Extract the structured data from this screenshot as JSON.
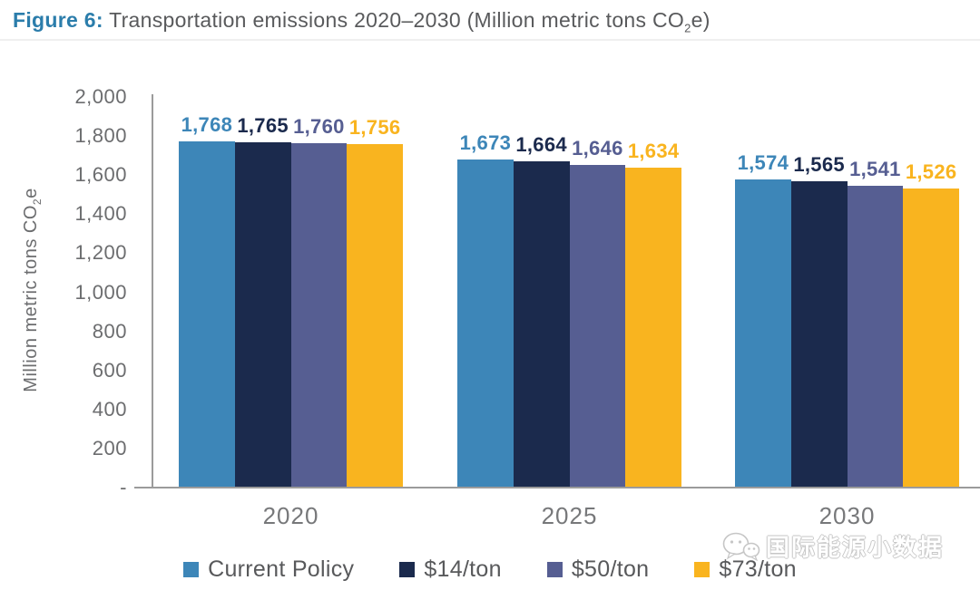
{
  "title": {
    "label": "Figure 6:",
    "body": " Transportation emissions 2020–2030 (Million metric tons CO",
    "sub": "2",
    "tail": "e)"
  },
  "ylabel_parts": {
    "body": "Million metric tons CO",
    "sub": "2",
    "tail": "e"
  },
  "colors": {
    "accent_title_blue": "#2b7dab",
    "title_gray": "#595a5c",
    "axis_gray": "#9b9b9b",
    "tick_text_gray": "#6c6d6f"
  },
  "chart_data": {
    "type": "bar",
    "title": "Figure 6: Transportation emissions 2020-2030 (Million metric tons CO2e)",
    "categories": [
      "2020",
      "2025",
      "2030"
    ],
    "series": [
      {
        "name": "Current Policy",
        "color": "#3d86b8",
        "values": [
          1768,
          1673,
          1574
        ],
        "labels": [
          "1,768",
          "1,673",
          "1,574"
        ]
      },
      {
        "name": "$14/ton",
        "color": "#1b2a4d",
        "values": [
          1765,
          1664,
          1565
        ],
        "labels": [
          "1,765",
          "1,664",
          "1,565"
        ]
      },
      {
        "name": "$50/ton",
        "color": "#565e92",
        "values": [
          1760,
          1646,
          1541
        ],
        "labels": [
          "1,760",
          "1,646",
          "1,541"
        ]
      },
      {
        "name": "$73/ton",
        "color": "#f9b41f",
        "values": [
          1756,
          1634,
          1526
        ],
        "labels": [
          "1,756",
          "1,634",
          "1,526"
        ]
      }
    ],
    "xlabel": "",
    "ylabel": "Million metric tons CO2e",
    "ylim": [
      0,
      2000
    ],
    "ytick_step": 200,
    "ytick_labels": [
      "2,000",
      "1,800",
      "1,600",
      "1,400",
      "1,200",
      "1,000",
      "800",
      "600",
      "400",
      "200",
      "-"
    ],
    "grid": false,
    "legend_position": "bottom",
    "value_labels_shown": true
  },
  "watermark": {
    "text": "国际能源小数据",
    "icon": "chat-bubbles-logo-icon"
  }
}
